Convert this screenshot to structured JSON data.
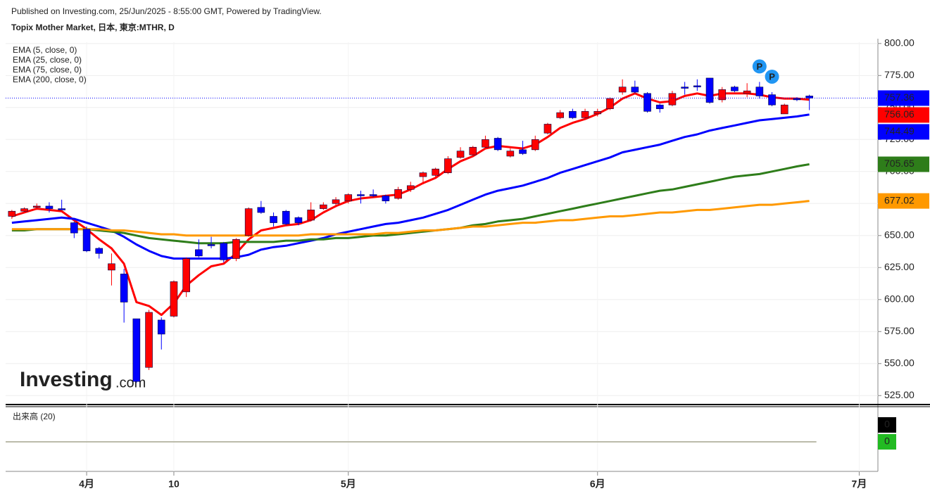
{
  "chart_data": {
    "type": "candlestick",
    "header": "Published on Investing.com, 25/Jun/2025 - 8:55:00 GMT, Powered by TradingView.",
    "title": "Topix Mother Market, 日本, 東京:MTHR, D",
    "watermark": [
      "Investing",
      ".com"
    ],
    "x": [
      0,
      1,
      2,
      3,
      4,
      5,
      6,
      7,
      8,
      9,
      10,
      11,
      12,
      13,
      14,
      15,
      16,
      17,
      18,
      19,
      20,
      21,
      22,
      23,
      24,
      25,
      26,
      27,
      28,
      29,
      30,
      31,
      32,
      33,
      34,
      35,
      36,
      37,
      38,
      39,
      40,
      41,
      42,
      43,
      44,
      45,
      46,
      47,
      48,
      49,
      50,
      51,
      52,
      53,
      54,
      55,
      56,
      57,
      58,
      59,
      60,
      61,
      62,
      63,
      64
    ],
    "xlim": [
      -0.5,
      69.5
    ],
    "xticks": [
      {
        "value": 6,
        "label": "4月"
      },
      {
        "value": 13,
        "label": "10"
      },
      {
        "value": 27,
        "label": "5月"
      },
      {
        "value": 47,
        "label": "6月"
      },
      {
        "value": 68,
        "label": "7月"
      }
    ],
    "ylim": [
      518,
      801
    ],
    "yticks": [
      {
        "value": 525,
        "label": "525.00"
      },
      {
        "value": 550,
        "label": "550.00"
      },
      {
        "value": 575,
        "label": "575.00"
      },
      {
        "value": 600,
        "label": "600.00"
      },
      {
        "value": 625,
        "label": "625.00"
      },
      {
        "value": 650,
        "label": "650.00"
      },
      {
        "value": 675,
        "label": "675.00"
      },
      {
        "value": 700,
        "label": "700.00"
      },
      {
        "value": 725,
        "label": "725.00"
      },
      {
        "value": 750,
        "label": "750.00"
      },
      {
        "value": 775,
        "label": "775.00"
      },
      {
        "value": 800,
        "label": "800.00"
      }
    ],
    "grid": true,
    "up_color": "#ff0000",
    "down_color": "#0000ff",
    "candles": {
      "open": [
        665,
        669,
        672,
        673,
        671,
        660,
        655,
        640,
        623,
        620,
        585,
        547,
        584,
        587,
        606,
        639,
        643,
        644,
        632,
        650,
        672,
        665,
        669,
        664,
        662,
        671,
        675,
        677,
        682,
        682,
        681,
        679,
        686,
        696,
        697,
        699,
        711,
        713,
        719,
        726,
        712,
        717,
        717,
        730,
        742,
        747,
        742,
        745,
        749,
        762,
        766,
        761,
        752,
        752,
        766,
        767,
        773,
        756,
        766,
        761,
        766,
        760,
        745,
        757,
        759
      ],
      "high": [
        670,
        672,
        675,
        676,
        678,
        661,
        657,
        641,
        636,
        624,
        585,
        592,
        586,
        615,
        633,
        647,
        649,
        645,
        648,
        672,
        677,
        668,
        670,
        665,
        676,
        676,
        680,
        683,
        685,
        686,
        682,
        688,
        692,
        700,
        703,
        712,
        719,
        720,
        728,
        727,
        718,
        724,
        728,
        738,
        748,
        749,
        749,
        749,
        758,
        772,
        771,
        762,
        753,
        763,
        770,
        772,
        773,
        766,
        767,
        769,
        770,
        762,
        753,
        758,
        760
      ],
      "low": [
        663,
        668,
        670,
        668,
        670,
        648,
        637,
        632,
        611,
        582,
        535,
        545,
        561,
        586,
        602,
        633,
        640,
        629,
        630,
        649,
        667,
        657,
        658,
        658,
        661,
        670,
        672,
        675,
        675,
        680,
        675,
        678,
        684,
        690,
        695,
        698,
        710,
        712,
        718,
        716,
        711,
        713,
        716,
        729,
        741,
        741,
        741,
        743,
        748,
        760,
        761,
        746,
        746,
        751,
        760,
        763,
        753,
        754,
        762,
        758,
        757,
        751,
        745,
        755,
        748
      ],
      "close": [
        669,
        671,
        673,
        671,
        670,
        652,
        638,
        636,
        628,
        598,
        536,
        590,
        573,
        614,
        632,
        634,
        642,
        631,
        647,
        671,
        668,
        660,
        659,
        660,
        670,
        674,
        678,
        682,
        681,
        681,
        677,
        686,
        689,
        699,
        702,
        710,
        716,
        719,
        725,
        717,
        716,
        714,
        725,
        737,
        746,
        742,
        747,
        747,
        757,
        766,
        762,
        747,
        749,
        761,
        765,
        766,
        754,
        764,
        763,
        763,
        759,
        752,
        752,
        756,
        757.36
      ]
    },
    "series": [
      {
        "name": "EMA (5, close, 0)",
        "color": "#ff0000",
        "values": [
          665,
          668,
          671,
          670,
          669,
          662,
          655,
          647,
          640,
          628,
          598,
          595,
          588,
          597,
          611,
          619,
          626,
          628,
          636,
          647,
          654,
          656,
          658,
          659,
          662,
          668,
          673,
          677,
          679,
          680,
          681,
          682,
          686,
          691,
          695,
          702,
          708,
          712,
          718,
          720,
          719,
          718,
          721,
          727,
          734,
          738,
          741,
          745,
          750,
          757,
          761,
          757,
          754,
          755,
          759,
          761,
          759,
          761,
          761,
          761,
          760,
          758,
          757,
          757,
          756.06
        ]
      },
      {
        "name": "EMA (25, close, 0)",
        "color": "#0000ff",
        "values": [
          660,
          661,
          662,
          663,
          664,
          663,
          660,
          657,
          654,
          649,
          643,
          638,
          634,
          632,
          632,
          632,
          632,
          632,
          633,
          635,
          639,
          641,
          642,
          644,
          646,
          648,
          651,
          653,
          655,
          657,
          659,
          660,
          662,
          664,
          667,
          670,
          674,
          678,
          682,
          685,
          687,
          689,
          692,
          695,
          699,
          702,
          705,
          708,
          711,
          715,
          717,
          719,
          721,
          724,
          727,
          729,
          732,
          734,
          736,
          738,
          740,
          741,
          742,
          743,
          744.49
        ]
      },
      {
        "name": "EMA (75, close, 0)",
        "color": "#2e7d1a",
        "values": [
          654,
          654,
          655,
          655,
          655,
          655,
          655,
          654,
          653,
          652,
          650,
          648,
          647,
          646,
          645,
          644,
          644,
          644,
          645,
          645,
          645,
          645,
          646,
          646,
          647,
          647,
          648,
          648,
          649,
          650,
          650,
          651,
          652,
          653,
          654,
          655,
          656,
          658,
          659,
          661,
          662,
          663,
          665,
          667,
          669,
          671,
          673,
          675,
          677,
          679,
          681,
          683,
          685,
          686,
          688,
          690,
          692,
          694,
          696,
          697,
          698,
          700,
          702,
          704,
          705.65
        ]
      },
      {
        "name": "EMA (200, close, 0)",
        "color": "#ff9900",
        "values": [
          655,
          655,
          655,
          655,
          655,
          655,
          655,
          655,
          654,
          654,
          653,
          652,
          651,
          651,
          650,
          650,
          650,
          650,
          650,
          650,
          650,
          650,
          650,
          650,
          651,
          651,
          651,
          651,
          651,
          651,
          652,
          652,
          653,
          654,
          654,
          655,
          656,
          657,
          657,
          658,
          659,
          660,
          660,
          661,
          662,
          662,
          663,
          664,
          665,
          665,
          666,
          667,
          668,
          668,
          669,
          670,
          670,
          671,
          672,
          673,
          674,
          674,
          675,
          676,
          677.02
        ]
      }
    ],
    "annotations": [
      {
        "x": 60,
        "text": "P"
      },
      {
        "x": 61,
        "text": "P"
      }
    ],
    "volume": {
      "title": "出来高 (20)",
      "values": [
        0,
        0
      ],
      "colors": [
        "#000000",
        "#22bb22"
      ]
    }
  }
}
